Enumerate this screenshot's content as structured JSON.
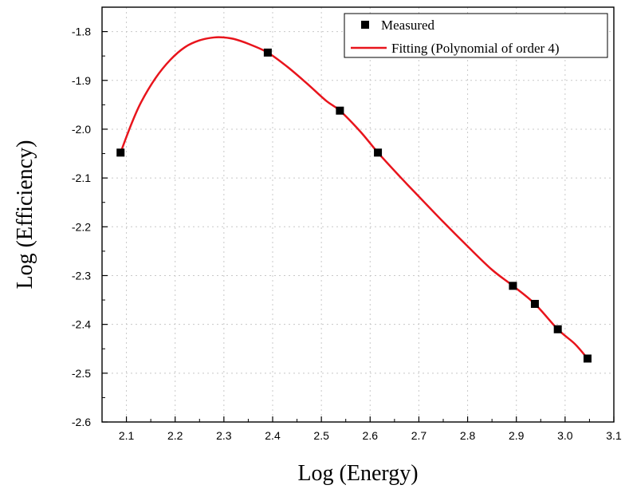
{
  "chart_data": {
    "type": "scatter",
    "xlabel": "Log (Energy)",
    "ylabel": "Log (Efficiency)",
    "xlim": [
      2.05,
      3.1
    ],
    "ylim": [
      -2.6,
      -1.75
    ],
    "xticks": [
      2.1,
      2.2,
      2.3,
      2.4,
      2.5,
      2.6,
      2.7,
      2.8,
      2.9,
      3.0,
      3.1
    ],
    "xtick_labels": [
      "2.1",
      "2.2",
      "2.3",
      "2.4",
      "2.5",
      "2.6",
      "2.7",
      "2.8",
      "2.9",
      "3.0",
      "3.1"
    ],
    "yticks": [
      -2.6,
      -2.5,
      -2.4,
      -2.3,
      -2.2,
      -2.1,
      -2.0,
      -1.9,
      -1.8
    ],
    "ytick_labels": [
      "-2.6",
      "-2.5",
      "-2.4",
      "-2.3",
      "-2.2",
      "-2.1",
      "-2.0",
      "-1.9",
      "-1.8"
    ],
    "grid": true,
    "legend_position": "top-right",
    "series": [
      {
        "name": "Measured",
        "kind": "scatter",
        "marker": "square",
        "color": "#000000",
        "x": [
          2.088,
          2.39,
          2.538,
          2.616,
          2.893,
          2.938,
          2.985,
          3.046
        ],
        "y": [
          -2.048,
          -1.843,
          -1.962,
          -2.048,
          -2.321,
          -2.358,
          -2.41,
          -2.47
        ]
      },
      {
        "name": "Fitting (Polynomial of order 4)",
        "kind": "line",
        "color": "#e8141c",
        "x": [
          2.088,
          2.11,
          2.13,
          2.16,
          2.19,
          2.22,
          2.25,
          2.28,
          2.3,
          2.32,
          2.35,
          2.39,
          2.43,
          2.47,
          2.51,
          2.538,
          2.58,
          2.616,
          2.66,
          2.7,
          2.75,
          2.8,
          2.85,
          2.893,
          2.938,
          2.985,
          3.02,
          3.046
        ],
        "y": [
          -2.048,
          -1.99,
          -1.945,
          -1.895,
          -1.858,
          -1.832,
          -1.818,
          -1.812,
          -1.812,
          -1.815,
          -1.825,
          -1.843,
          -1.872,
          -1.906,
          -1.942,
          -1.962,
          -2.005,
          -2.048,
          -2.096,
          -2.138,
          -2.19,
          -2.24,
          -2.288,
          -2.321,
          -2.358,
          -2.41,
          -2.44,
          -2.47
        ]
      }
    ]
  }
}
